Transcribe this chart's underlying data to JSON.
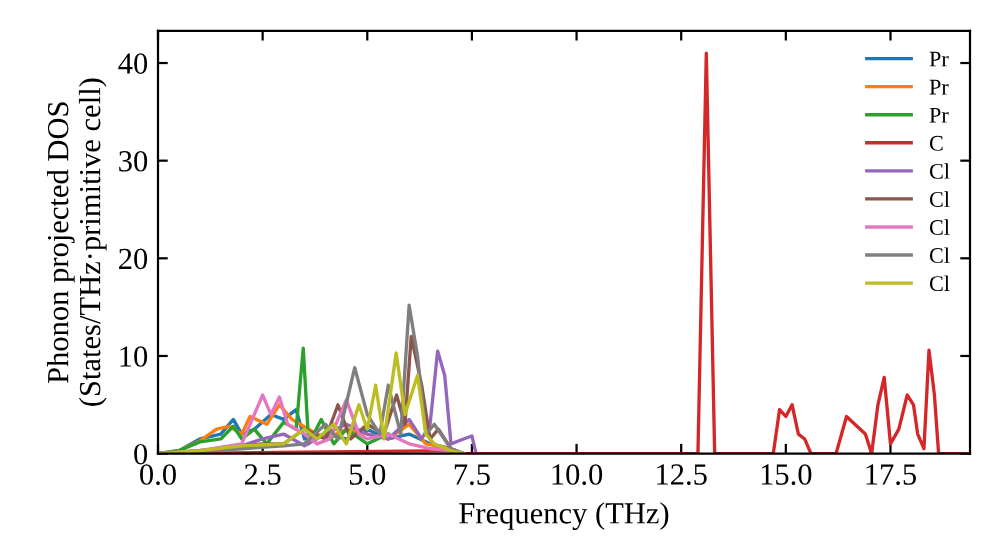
{
  "chart_data": {
    "type": "line",
    "xlabel": "Frequency (THz)",
    "ylabel": "Phonon projected DOS\n(States/THz·primitive cell)",
    "xlim": [
      0,
      19.4
    ],
    "ylim": [
      0,
      43.3
    ],
    "xticks": [
      {
        "value": 0,
        "label": "0.0"
      },
      {
        "value": 2.5,
        "label": "2.5"
      },
      {
        "value": 5,
        "label": "5.0"
      },
      {
        "value": 7.5,
        "label": "7.5"
      },
      {
        "value": 10,
        "label": "10.0"
      },
      {
        "value": 12.5,
        "label": "12.5"
      },
      {
        "value": 15,
        "label": "15.0"
      },
      {
        "value": 17.5,
        "label": "17.5"
      }
    ],
    "yticks": [
      0,
      10,
      20,
      30,
      40
    ],
    "legend": "top right",
    "grid": false,
    "line_style": "solid",
    "marker": "none",
    "series": [
      {
        "name": "Pr",
        "color": "#1f77b4",
        "x": [
          0,
          0.5,
          1,
          1.5,
          1.8,
          2,
          2.3,
          2.7,
          3,
          3.3,
          3.5,
          4,
          4.5,
          5,
          5.5,
          6,
          6.5,
          7,
          7.3
        ],
        "values": [
          0,
          0.3,
          1.5,
          2,
          3.5,
          2,
          2.5,
          4,
          3.5,
          4.5,
          1.5,
          2,
          1.5,
          2.5,
          1.5,
          2,
          1,
          0.5,
          0
        ]
      },
      {
        "name": "Pr",
        "color": "#ff7f0e",
        "x": [
          0,
          0.5,
          1,
          1.4,
          1.7,
          2,
          2.2,
          2.6,
          2.9,
          3.2,
          3.6,
          4,
          4.5,
          5,
          5.5,
          6,
          6.4,
          7,
          7.3
        ],
        "values": [
          0,
          0.3,
          1.3,
          2.5,
          2.8,
          2,
          3.8,
          3,
          5,
          3.5,
          2.5,
          1.5,
          2.5,
          2,
          1.5,
          3,
          1,
          0.5,
          0
        ]
      },
      {
        "name": "Pr",
        "color": "#2ca02c",
        "x": [
          0,
          0.5,
          1,
          1.5,
          1.8,
          2,
          2.3,
          2.6,
          3,
          3.3,
          3.47,
          3.6,
          3.9,
          4.2,
          4.5,
          5,
          5.5,
          6,
          6.5,
          7,
          7.3
        ],
        "values": [
          0,
          0.3,
          1.2,
          1.5,
          2.8,
          1.5,
          2.5,
          1,
          3.2,
          2.5,
          10.8,
          1,
          3.5,
          1,
          2.5,
          1,
          2,
          null,
          0.5,
          0.3,
          0
        ]
      },
      {
        "name": "C",
        "color": "#d62728",
        "x": [
          0,
          7,
          7.3,
          12.9,
          13.1,
          13.3,
          14.7,
          14.85,
          15,
          15.15,
          15.3,
          15.45,
          15.6,
          16.2,
          16.45,
          16.7,
          16.9,
          17.05,
          17.2,
          17.35,
          17.5,
          17.7,
          17.9,
          18.05,
          18.15,
          18.3,
          18.42,
          18.55,
          18.65,
          19.4
        ],
        "values": [
          0,
          0.3,
          0,
          0,
          41,
          0,
          0,
          4.5,
          3.8,
          5,
          2,
          1.5,
          0,
          0,
          3.8,
          2.8,
          2,
          0,
          5,
          7.8,
          1,
          2.5,
          6,
          5,
          2,
          0.5,
          10.6,
          6,
          0,
          0
        ]
      },
      {
        "name": "Cl",
        "color": "#9467bd",
        "x": [
          0,
          1,
          2,
          2.5,
          3,
          3.5,
          4,
          4.5,
          5,
          5.5,
          6,
          6.3,
          6.5,
          6.68,
          6.85,
          7,
          7.3,
          7.5,
          7.6
        ],
        "values": [
          0,
          0.3,
          0.8,
          1.5,
          2,
          0.8,
          2,
          3,
          2,
          1.5,
          3.5,
          1.5,
          3,
          10.5,
          8,
          1,
          1.5,
          1.8,
          0
        ]
      },
      {
        "name": "Cl",
        "color": "#8c564b",
        "x": [
          0,
          1,
          2,
          2.5,
          3,
          3.5,
          4,
          4.3,
          4.6,
          5,
          5.4,
          5.7,
          5.9,
          6.05,
          6.3,
          6.5,
          6.7,
          7,
          7.3
        ],
        "values": [
          0,
          0.3,
          0.8,
          1,
          1,
          2.5,
          1.5,
          5,
          1.5,
          3,
          2,
          6,
          3,
          12,
          7,
          1.5,
          2.5,
          0.5,
          0
        ]
      },
      {
        "name": "Cl",
        "color": "#e377c2",
        "x": [
          0,
          1,
          2,
          2.5,
          2.7,
          2.9,
          3.1,
          3.5,
          3.8,
          4.1,
          4.5,
          4.8,
          5,
          5.5,
          6,
          6.5,
          7,
          7.3
        ],
        "values": [
          0,
          0.3,
          1,
          6,
          4,
          5.8,
          3,
          2,
          1,
          1.5,
          5.5,
          2,
          1.5,
          2,
          1,
          0.5,
          0.3,
          0
        ]
      },
      {
        "name": "Cl",
        "color": "#7f7f7f",
        "x": [
          0,
          1,
          2,
          3,
          3.5,
          4,
          4.3,
          4.7,
          5,
          5.3,
          5.5,
          5.8,
          6.0,
          6.2,
          6.4,
          6.6,
          7,
          7.3
        ],
        "values": [
          0,
          0.2,
          0.5,
          0.8,
          1,
          3,
          1.5,
          8.8,
          4,
          2,
          7,
          2,
          15.2,
          10,
          2,
          3,
          0.5,
          0
        ]
      },
      {
        "name": "Cl",
        "color": "#bcbd22",
        "x": [
          0,
          1,
          2,
          3,
          3.5,
          3.8,
          4.2,
          4.5,
          4.8,
          5.0,
          5.2,
          5.4,
          5.69,
          5.9,
          6.2,
          6.4,
          6.6,
          7,
          7.3
        ],
        "values": [
          0,
          0.3,
          0.8,
          1,
          2.5,
          1.5,
          3,
          1,
          5,
          2.5,
          7,
          1.5,
          10.3,
          4,
          8,
          2,
          1,
          0.3,
          0
        ]
      }
    ]
  }
}
